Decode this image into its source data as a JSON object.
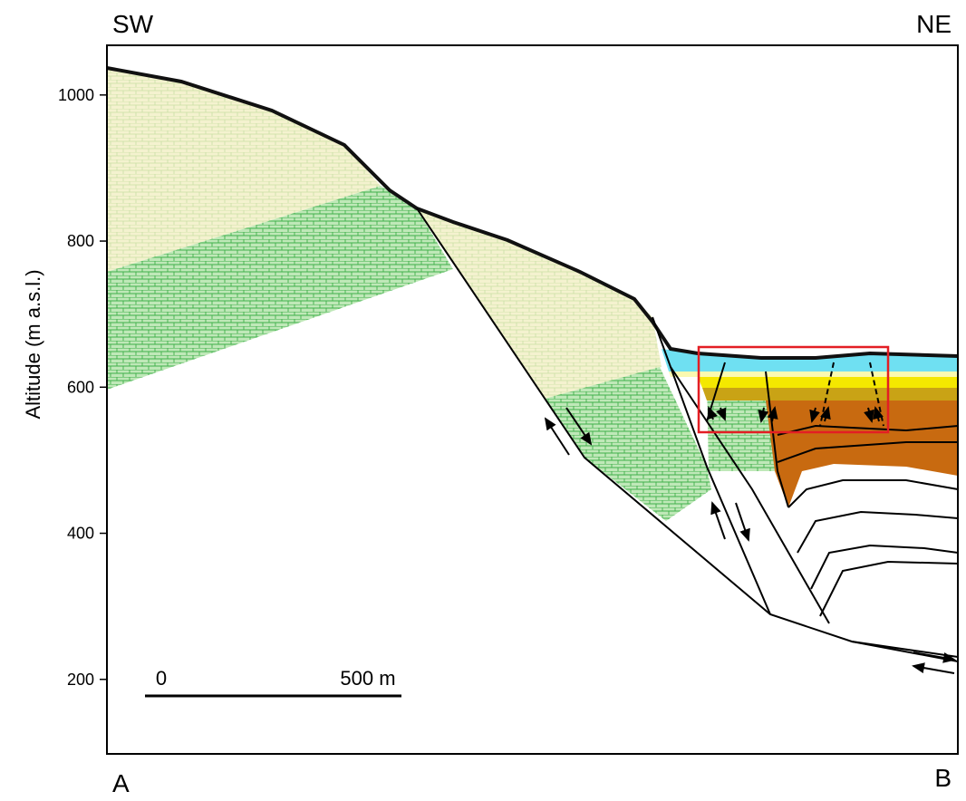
{
  "orientation": {
    "left": "SW",
    "right": "NE"
  },
  "section_ends": {
    "start": "A",
    "end": "B"
  },
  "axis": {
    "label": "Altitude (m a.s.l.)",
    "ylim": [
      98,
      1068
    ],
    "yticks": [
      200,
      400,
      600,
      800,
      1000
    ]
  },
  "scale_bar": {
    "start": "0",
    "end": "500 m"
  }
}
